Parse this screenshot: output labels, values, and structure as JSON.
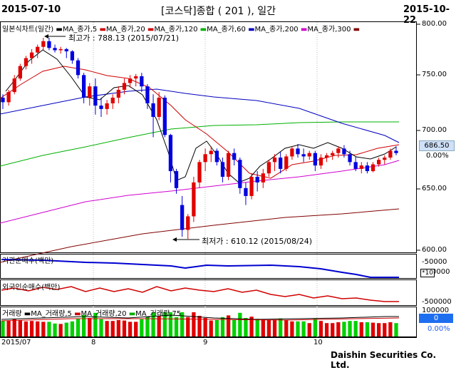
{
  "header": {
    "start_date": "2015-07-10",
    "title": "[코스닥]종합 ( 201 ), 일간",
    "end_date": "2015-10-22"
  },
  "main_chart": {
    "legend_title": "일본식차트(일간)",
    "ma_legend": [
      {
        "label": "MA_종가,5",
        "color": "#000000"
      },
      {
        "label": "MA_종가,20",
        "color": "#d00000"
      },
      {
        "label": "MA_종가,120",
        "color": "#d00000"
      },
      {
        "label": "MA_종가,60",
        "color": "#00b000"
      },
      {
        "label": "MA_종가,200",
        "color": "#0000c0"
      },
      {
        "label": "MA_종가,300",
        "color": "#d000d0"
      }
    ],
    "extra_legend_marker_color": "#800000",
    "high_annotation": "최고가 : 788.13 (2015/07/21)",
    "low_annotation": "최저가 : 610.12 (2015/08/24)",
    "price_tag": "686.50",
    "pct_tag": "0.00%",
    "y_ticks": [
      "800.00",
      "750.00",
      "700.00",
      "650.00",
      "600.00"
    ]
  },
  "institution_panel": {
    "label": "기관순매수(백만)",
    "tick_top": "-50000",
    "tick_bottom": "0000",
    "badge": "*10"
  },
  "foreign_panel": {
    "label": "외국인순매수(백만)",
    "tick": "-500000"
  },
  "volume_panel": {
    "label": "거래량",
    "ma_legend": [
      {
        "label": "MA_거래량,5",
        "color": "#000000"
      },
      {
        "label": "MA_거래량,20",
        "color": "#d00000"
      },
      {
        "label": "MA_거래량,75",
        "color": "#00b000"
      }
    ],
    "tick_top": "100000",
    "value_tag": "0",
    "pct_tag": "0.00%"
  },
  "x_axis": {
    "labels": [
      "2015/07",
      "8",
      "9",
      "10"
    ]
  },
  "footer": {
    "brand": "Daishin Securities Co. Ltd."
  },
  "colors": {
    "up": "#e00000",
    "down": "#0000e0",
    "vol_green": "#00d000",
    "price_tag_bg": "#cfe0f8"
  },
  "chart_data": {
    "type": "candlestick",
    "ylim": [
      600,
      800
    ],
    "candles": [
      [
        735,
        738,
        725,
        731
      ],
      [
        731,
        742,
        728,
        740
      ],
      [
        740,
        755,
        738,
        752
      ],
      [
        752,
        765,
        750,
        763
      ],
      [
        763,
        772,
        760,
        770
      ],
      [
        770,
        778,
        765,
        775
      ],
      [
        775,
        782,
        770,
        780
      ],
      [
        780,
        788,
        777,
        785
      ],
      [
        785,
        788,
        777,
        779
      ],
      [
        779,
        782,
        775,
        777
      ],
      [
        777,
        780,
        774,
        778
      ],
      [
        778,
        779,
        770,
        776
      ],
      [
        776,
        777,
        765,
        768
      ],
      [
        768,
        770,
        752,
        755
      ],
      [
        755,
        757,
        730,
        735
      ],
      [
        735,
        748,
        728,
        745
      ],
      [
        745,
        752,
        720,
        728
      ],
      [
        728,
        735,
        718,
        725
      ],
      [
        725,
        733,
        720,
        730
      ],
      [
        730,
        738,
        725,
        735
      ],
      [
        735,
        745,
        730,
        742
      ],
      [
        742,
        752,
        738,
        748
      ],
      [
        748,
        755,
        744,
        752
      ],
      [
        752,
        756,
        745,
        754
      ],
      [
        754,
        757,
        740,
        745
      ],
      [
        745,
        747,
        725,
        730
      ],
      [
        730,
        738,
        700,
        718
      ],
      [
        718,
        740,
        715,
        735
      ],
      [
        735,
        737,
        700,
        702
      ],
      [
        702,
        703,
        660,
        670
      ],
      [
        670,
        672,
        650,
        655
      ],
      [
        640,
        648,
        612,
        618
      ],
      [
        618,
        632,
        610,
        630
      ],
      [
        630,
        665,
        625,
        660
      ],
      [
        660,
        680,
        655,
        678
      ],
      [
        678,
        690,
        670,
        685
      ],
      [
        685,
        692,
        678,
        688
      ],
      [
        688,
        690,
        675,
        678
      ],
      [
        678,
        682,
        660,
        665
      ],
      [
        665,
        688,
        662,
        686
      ],
      [
        686,
        690,
        675,
        680
      ],
      [
        680,
        682,
        650,
        655
      ],
      [
        655,
        660,
        640,
        648
      ],
      [
        648,
        668,
        645,
        665
      ],
      [
        665,
        670,
        652,
        660
      ],
      [
        660,
        672,
        655,
        668
      ],
      [
        668,
        680,
        665,
        678
      ],
      [
        678,
        685,
        670,
        682
      ],
      [
        682,
        687,
        668,
        672
      ],
      [
        672,
        685,
        670,
        683
      ],
      [
        683,
        692,
        680,
        690
      ],
      [
        690,
        694,
        682,
        685
      ],
      [
        685,
        690,
        678,
        683
      ],
      [
        683,
        688,
        680,
        686
      ],
      [
        686,
        688,
        670,
        675
      ],
      [
        675,
        685,
        672,
        682
      ],
      [
        682,
        686,
        678,
        684
      ],
      [
        684,
        688,
        680,
        686
      ],
      [
        686,
        692,
        682,
        690
      ],
      [
        690,
        693,
        682,
        685
      ],
      [
        685,
        688,
        675,
        678
      ],
      [
        678,
        683,
        670,
        672
      ],
      [
        672,
        678,
        668,
        675
      ],
      [
        675,
        678,
        668,
        670
      ],
      [
        670,
        678,
        669,
        676
      ],
      [
        676,
        682,
        674,
        680
      ],
      [
        680,
        684,
        676,
        682
      ],
      [
        682,
        690,
        680,
        688
      ],
      [
        688,
        692,
        684,
        686
      ]
    ]
  }
}
